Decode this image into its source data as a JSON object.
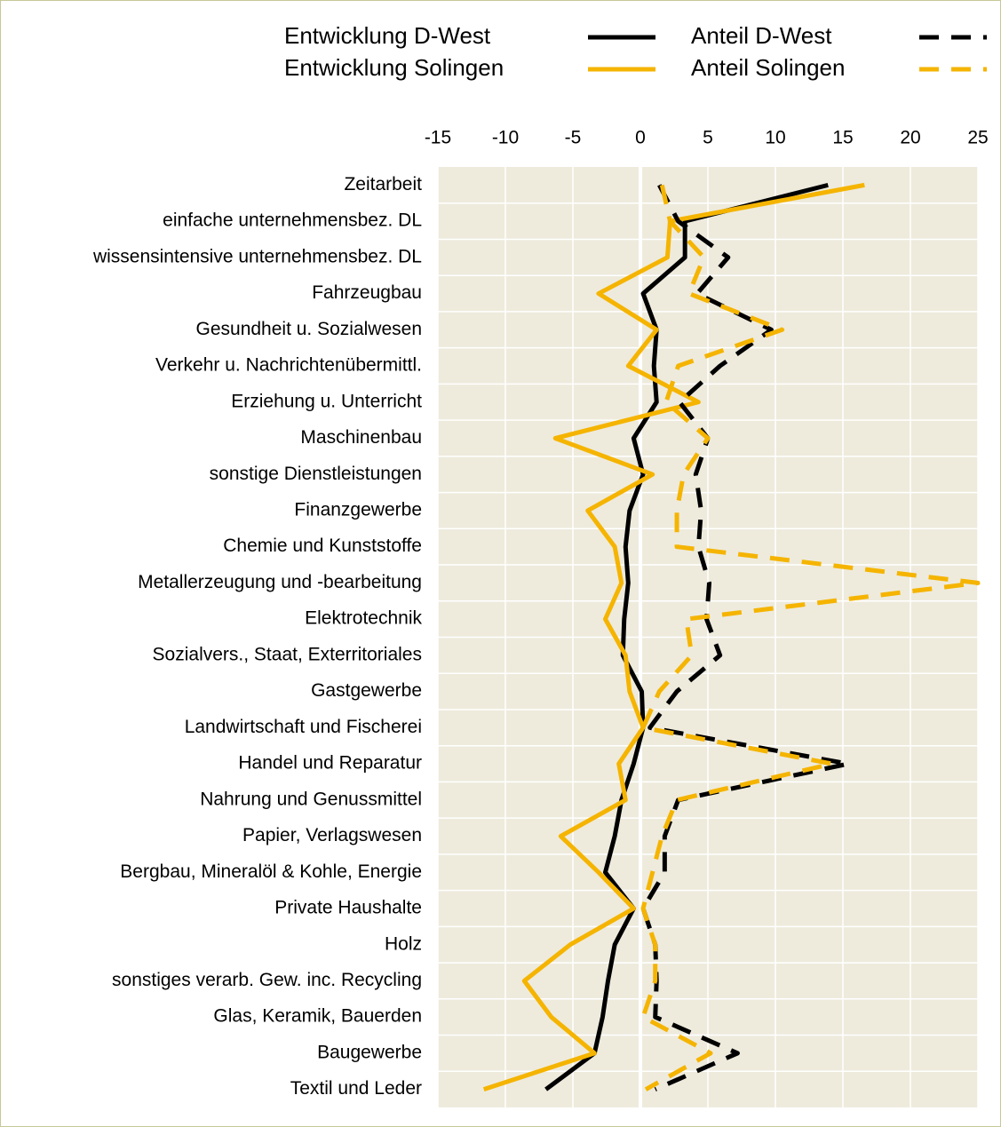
{
  "chart_data": {
    "type": "line",
    "orientation": "horizontal",
    "categories": [
      "Zeitarbeit",
      "einfache unternehmensbez.  DL",
      "wissensintensive unternehmensbez.  DL",
      "Fahrzeugbau",
      "Gesundheit u. Sozialwesen",
      "Verkehr u. Nachrichtenübermittl.",
      "Erziehung u. Unterricht",
      "Maschinenbau",
      "sonstige Dienstleistungen",
      "Finanzgewerbe",
      "Chemie und Kunststoffe",
      "Metallerzeugung und -bearbeitung",
      "Elektrotechnik",
      "Sozialvers., Staat, Exterritoriales",
      "Gastgewerbe",
      "Landwirtschaft und Fischerei",
      "Handel und Reparatur",
      "Nahrung und Genussmittel",
      "Papier, Verlagswesen",
      "Bergbau, Mineralöl & Kohle, Energie",
      "Private Haushalte",
      "Holz",
      "sonstiges verarb. Gew. inc. Recycling",
      "Glas, Keramik, Bauerden",
      "Baugewerbe",
      "Textil und Leder"
    ],
    "series": [
      {
        "name": "Entwicklung D-West",
        "color": "#000000",
        "style": "solid",
        "values": [
          13.9,
          3.3,
          3.3,
          0.2,
          1.2,
          1.0,
          1.2,
          -0.5,
          0.2,
          -0.8,
          -1.1,
          -0.9,
          -1.2,
          -1.3,
          0.1,
          0.2,
          -0.5,
          -1.4,
          -1.9,
          -2.6,
          -0.5,
          -1.9,
          -2.4,
          -2.8,
          -3.4,
          -7.0
        ]
      },
      {
        "name": "Entwicklung Solingen",
        "color": "#f5b400",
        "style": "solid",
        "values": [
          16.6,
          2.2,
          2.0,
          -3.1,
          1.2,
          -0.9,
          4.3,
          -6.3,
          0.9,
          -3.9,
          -1.9,
          -1.4,
          -2.6,
          -1.1,
          -0.8,
          0.2,
          -1.6,
          -1.1,
          -5.9,
          -3.1,
          -0.5,
          -5.2,
          -8.6,
          -6.6,
          -3.4,
          -11.6
        ]
      },
      {
        "name": "Anteil D-West",
        "color": "#000000",
        "style": "dashed",
        "values": [
          1.4,
          2.8,
          6.5,
          4.2,
          9.7,
          5.9,
          2.9,
          5.0,
          4.1,
          4.5,
          4.3,
          5.1,
          4.9,
          5.9,
          2.7,
          0.7,
          15.4,
          2.8,
          1.8,
          1.8,
          0.2,
          1.1,
          1.2,
          1.1,
          7.2,
          1.1
        ]
      },
      {
        "name": "Anteil Solingen",
        "color": "#f5b400",
        "style": "dashed",
        "values": [
          1.6,
          2.2,
          4.7,
          3.6,
          10.5,
          2.8,
          1.9,
          5.0,
          3.2,
          2.7,
          2.7,
          25,
          3.4,
          3.8,
          1.4,
          0.2,
          14.2,
          2.7,
          1.6,
          0.9,
          0.2,
          1.1,
          1.1,
          0.2,
          5.2,
          0.4
        ]
      }
    ],
    "xlim": [
      -15,
      25
    ],
    "xticks": [
      -15,
      -10,
      -5,
      0,
      5,
      10,
      15,
      20,
      25
    ],
    "grid": true,
    "legend": "top"
  }
}
